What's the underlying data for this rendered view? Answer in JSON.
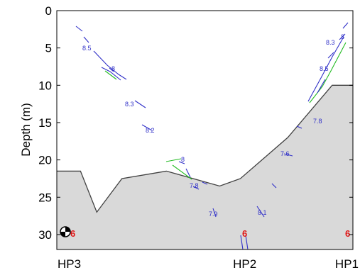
{
  "chart_data": {
    "type": "line",
    "title": "",
    "ylabel": "Depth (m)",
    "xlabel": "",
    "x_categories": [
      "HP3",
      "HP2",
      "HP1"
    ],
    "y_ticks": [
      0,
      5,
      10,
      15,
      20,
      25,
      30
    ],
    "ylim": [
      0,
      32
    ],
    "y_inverted": true,
    "grid": false,
    "colors": {
      "seabed_fill": "#d9d9d9",
      "seabed_line": "#404040",
      "contour_blue": "#3030c8",
      "contour_green": "#22bb22",
      "station_label_red": "#e01818"
    },
    "seabed_profile": {
      "x": [
        0,
        0.08,
        0.135,
        0.22,
        0.37,
        0.55,
        0.62,
        0.78,
        0.93,
        1.0
      ],
      "depth": [
        21.5,
        21.5,
        27,
        22.5,
        21.5,
        23.5,
        22.5,
        17,
        10,
        10
      ]
    },
    "contour_labels": [
      "8.5",
      "8",
      "8.3",
      "8.2",
      "8",
      "7.8",
      "7.9",
      "8.1",
      "7.6",
      "7.8",
      "8.5",
      "8.3",
      "8"
    ],
    "station_labels": [
      "6",
      "6",
      "6"
    ],
    "compass_icon": "north-arrow-icon"
  }
}
